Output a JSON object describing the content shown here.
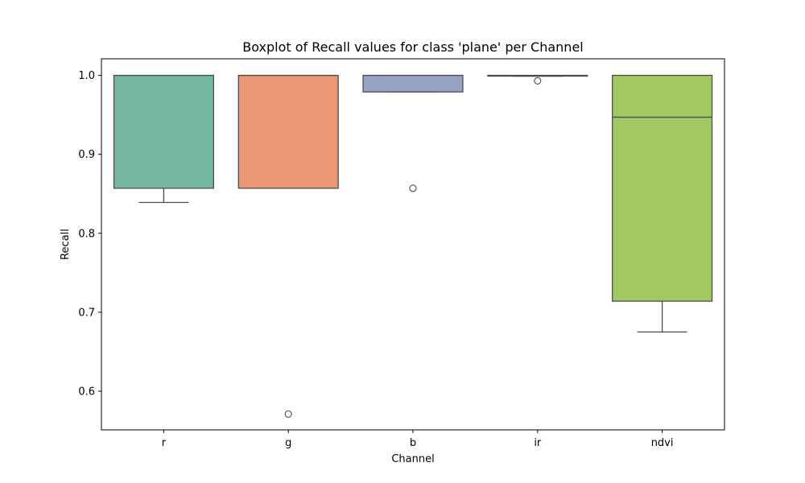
{
  "chart_data": {
    "type": "box",
    "title": "Boxplot of Recall values for class 'plane' per Channel",
    "xlabel": "Channel",
    "ylabel": "Recall",
    "ylim": [
      0.551,
      1.021
    ],
    "yticks": [
      0.6,
      0.7,
      0.8,
      0.9,
      1.0
    ],
    "ytick_labels": [
      "0.6",
      "0.7",
      "0.8",
      "0.9",
      "1.0"
    ],
    "grid": false,
    "legend": "none",
    "categories": [
      "r",
      "g",
      "b",
      "ir",
      "ndvi"
    ],
    "boxes": [
      {
        "category": "r",
        "color": "#75b8a0",
        "whislo": 0.839,
        "q1": 0.857,
        "median": 1.0,
        "q3": 1.0,
        "whishi": 1.0,
        "fliers": []
      },
      {
        "category": "g",
        "color": "#ea9775",
        "whislo": 0.857,
        "q1": 0.857,
        "median": 1.0,
        "q3": 1.0,
        "whishi": 1.0,
        "fliers": [
          0.571
        ]
      },
      {
        "category": "b",
        "color": "#95a3c4",
        "whislo": 0.979,
        "q1": 0.979,
        "median": 1.0,
        "q3": 1.0,
        "whishi": 1.0,
        "fliers": [
          0.857
        ]
      },
      {
        "category": "ir",
        "color": "#a1c863",
        "whislo": 0.999,
        "q1": 0.999,
        "median": 1.0,
        "q3": 1.0,
        "whishi": 1.0,
        "fliers": [
          0.993
        ]
      },
      {
        "category": "ndvi",
        "color": "#a1c863",
        "whislo": 0.675,
        "q1": 0.714,
        "median": 0.947,
        "q3": 1.0,
        "whishi": 1.0,
        "fliers": []
      }
    ],
    "colors": {
      "box_edge": "#4d4d4d",
      "axis": "#000000",
      "background": "#ffffff"
    }
  }
}
